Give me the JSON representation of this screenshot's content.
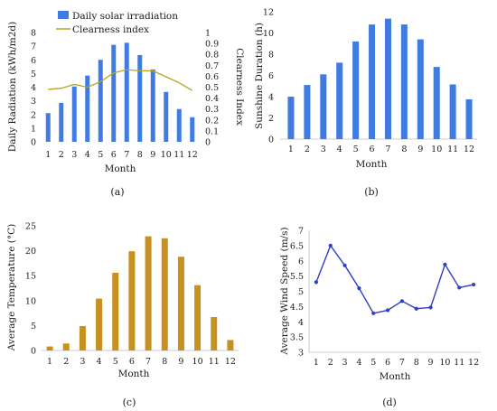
{
  "chart_data": [
    {
      "panel": "(a)",
      "type": "bar",
      "categories": [
        "1",
        "2",
        "3",
        "4",
        "5",
        "6",
        "7",
        "8",
        "9",
        "10",
        "11",
        "12"
      ],
      "series": [
        {
          "name": "Daily solar irradiation",
          "type": "bar",
          "axis": "left",
          "color": "#3f7be0",
          "values": [
            2.1,
            2.85,
            4.05,
            4.85,
            6.0,
            7.1,
            7.25,
            6.35,
            5.3,
            3.65,
            2.4,
            1.8
          ]
        },
        {
          "name": "Clearness index",
          "type": "line",
          "axis": "right",
          "color": "#b5a521",
          "values": [
            0.48,
            0.49,
            0.525,
            0.5,
            0.55,
            0.63,
            0.66,
            0.65,
            0.65,
            0.595,
            0.54,
            0.47
          ]
        }
      ],
      "xlabel": "Month",
      "ylabel": "Daily Radiation (kWh/m2d)",
      "y2label": "Clearness Index",
      "ylim": [
        0,
        8
      ],
      "y2lim": [
        0,
        1
      ],
      "yticks": [
        "0",
        "1",
        "2",
        "3",
        "4",
        "5",
        "6",
        "7",
        "8"
      ],
      "y2ticks": [
        "0",
        "0.1",
        "0.2",
        "0.3",
        "0.4",
        "0.5",
        "0.6",
        "0.7",
        "0.8",
        "0.9",
        "1"
      ],
      "legend": "top",
      "caption": "(a)"
    },
    {
      "panel": "(b)",
      "type": "bar",
      "categories": [
        "1",
        "2",
        "3",
        "4",
        "5",
        "6",
        "7",
        "8",
        "9",
        "10",
        "11",
        "12"
      ],
      "values": [
        4.0,
        5.1,
        6.1,
        7.2,
        9.2,
        10.8,
        11.35,
        10.8,
        9.4,
        6.8,
        5.15,
        3.75
      ],
      "color": "#3f7be0",
      "xlabel": "Month",
      "ylabel": "Sunshine Duration (h)",
      "ylim": [
        0,
        12
      ],
      "yticks": [
        "0",
        "2",
        "4",
        "6",
        "8",
        "10",
        "12"
      ],
      "caption": "(b)"
    },
    {
      "panel": "(c)",
      "type": "bar",
      "categories": [
        "1",
        "2",
        "3",
        "4",
        "5",
        "6",
        "7",
        "8",
        "9",
        "10",
        "11",
        "12"
      ],
      "values": [
        0.8,
        1.4,
        4.9,
        10.4,
        15.6,
        19.9,
        22.9,
        22.5,
        18.8,
        13.1,
        6.7,
        2.1
      ],
      "color": "#c8901e",
      "xlabel": "Month",
      "ylabel": "Average Temperature (°C)",
      "ylim": [
        0,
        25
      ],
      "yticks": [
        "0",
        "5",
        "10",
        "15",
        "20",
        "25"
      ],
      "caption": "(c)"
    },
    {
      "panel": "(d)",
      "type": "line",
      "x": [
        "1",
        "2",
        "3",
        "4",
        "5",
        "6",
        "7",
        "8",
        "9",
        "10",
        "11",
        "12"
      ],
      "values": [
        5.3,
        6.5,
        5.85,
        5.1,
        4.28,
        4.38,
        4.68,
        4.43,
        4.47,
        5.88,
        5.12,
        5.22
      ],
      "color": "#2f3fc2",
      "xlabel": "Month",
      "ylabel": "Average Wind Speed (m/s)",
      "ylim": [
        3,
        7
      ],
      "yticks": [
        "3",
        "3.5",
        "4",
        "4.5",
        "5",
        "5.5",
        "6",
        "6.5",
        "7"
      ],
      "caption": "(d)"
    }
  ]
}
